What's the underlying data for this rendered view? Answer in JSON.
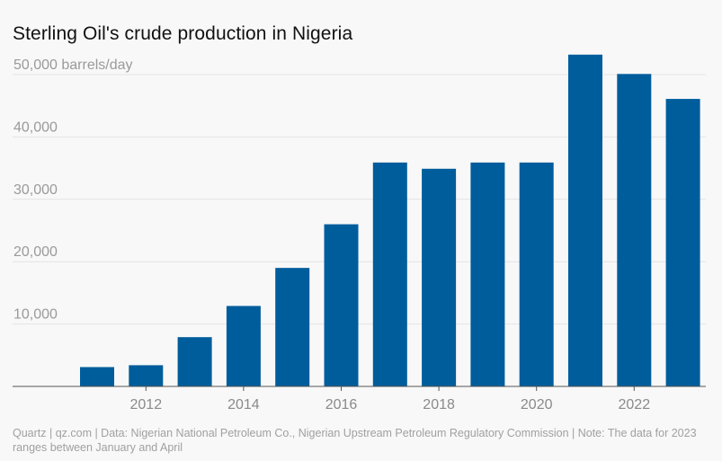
{
  "title": "Sterling Oil's crude production in Nigeria",
  "source": "Quartz | qz.com | Data: Nigerian National Petroleum Co., Nigerian Upstream Petroleum Regulatory Commission | Note: The data for 2023 ranges between January and April",
  "colors": {
    "bar": "#005d9c",
    "grid": "#e3e3e3",
    "axis": "#555555",
    "background": "#f8f8f8"
  },
  "chart_data": {
    "type": "bar",
    "title": "Sterling Oil's crude production in Nigeria",
    "ylabel": "barrels/day",
    "categories": [
      2011,
      2012,
      2013,
      2014,
      2015,
      2016,
      2017,
      2018,
      2019,
      2020,
      2021,
      2022,
      2023
    ],
    "values": [
      3100,
      3400,
      7900,
      12900,
      19000,
      26000,
      35900,
      34900,
      35900,
      35900,
      53200,
      50100,
      46100
    ],
    "ylim": [
      0,
      50000
    ],
    "yticks": [
      10000,
      20000,
      30000,
      40000,
      50000
    ],
    "ytick_labels": [
      "10,000",
      "20,000",
      "30,000",
      "40,000",
      "50,000 barrels/day"
    ],
    "xticks": [
      2012,
      2014,
      2016,
      2018,
      2020,
      2022
    ],
    "xtick_labels": [
      "2012",
      "2014",
      "2016",
      "2018",
      "2020",
      "2022"
    ],
    "grid": true
  }
}
